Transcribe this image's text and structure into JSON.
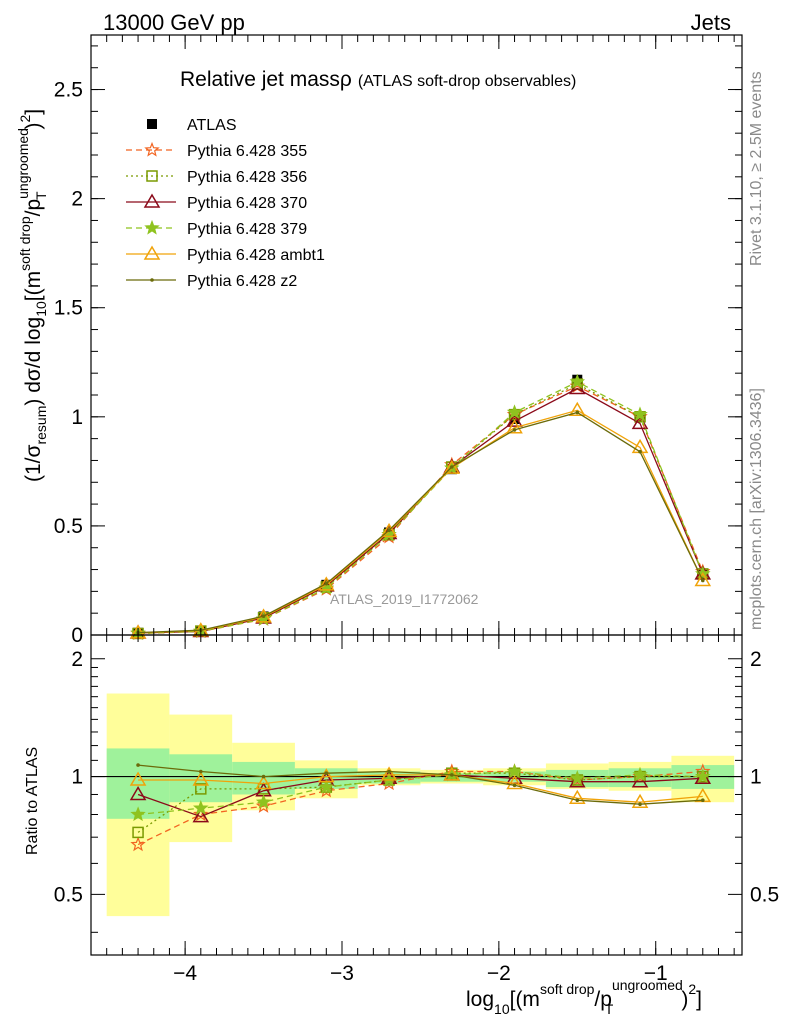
{
  "header": {
    "left": "13000 GeV pp",
    "right": "Jets"
  },
  "side_text": {
    "top": "Rivet 3.1.10, ≥ 2.5M events",
    "bottom": "mcplots.cern.ch [arXiv:1306.3436]"
  },
  "chart_data": [
    {
      "type": "line",
      "title": "Relative jet massρ",
      "subtitle": "(ATLAS soft-drop observables)",
      "watermark": "ATLAS_2019_I1772062",
      "ylabel": "(1/σresum) dσ/d log10[(m soft drop/pT ungroomed)2]",
      "ylabel_parts": {
        "a": "(1/σ",
        "a_sub": "resum",
        "b": ") dσ/d log",
        "b_sub": "10",
        "c": "[(m",
        "c_sup": "soft drop",
        "d": "/p",
        "d_sub": "T",
        "d_sup": "ungroomed",
        "e": ")",
        "e_sup": "2",
        "f": "]"
      },
      "xlim": [
        -4.6,
        -0.45
      ],
      "ylim": [
        0,
        2.75
      ],
      "y_ticks": [
        "0",
        "0.5",
        "1",
        "1.5",
        "2",
        "2.5"
      ],
      "x": [
        -4.3,
        -3.9,
        -3.5,
        -3.1,
        -2.7,
        -2.3,
        -1.9,
        -1.5,
        -1.1,
        -0.7
      ],
      "series": [
        {
          "name": "ATLAS",
          "color": "#000000",
          "style": "data",
          "marker": "square",
          "values": [
            0.01,
            0.02,
            0.085,
            0.23,
            0.47,
            0.76,
            0.99,
            1.17,
            1.0,
            0.28
          ]
        },
        {
          "name": "Pythia 6.428 355",
          "color": "#f26522",
          "style": "dashed",
          "marker": "star-open",
          "values": [
            0.007,
            0.016,
            0.072,
            0.21,
            0.45,
            0.78,
            1.01,
            1.14,
            1.0,
            0.29
          ]
        },
        {
          "name": "Pythia 6.428 356",
          "color": "#7a9a01",
          "style": "dotted",
          "marker": "square-open",
          "values": [
            0.007,
            0.018,
            0.079,
            0.22,
            0.46,
            0.77,
            1.01,
            1.15,
            1.0,
            0.28
          ]
        },
        {
          "name": "Pythia 6.428 370",
          "color": "#8b0a1a",
          "style": "solid",
          "marker": "triangle-open",
          "values": [
            0.009,
            0.016,
            0.078,
            0.225,
            0.465,
            0.77,
            0.98,
            1.13,
            0.97,
            0.28
          ]
        },
        {
          "name": "Pythia 6.428 379",
          "color": "#8fc31f",
          "style": "dashed",
          "marker": "star",
          "values": [
            0.008,
            0.017,
            0.073,
            0.215,
            0.46,
            0.765,
            1.02,
            1.16,
            1.01,
            0.28
          ]
        },
        {
          "name": "Pythia 6.428 ambt1",
          "color": "#f0a30a",
          "style": "solid",
          "marker": "triangle-open",
          "values": [
            0.01,
            0.02,
            0.083,
            0.23,
            0.475,
            0.765,
            0.95,
            1.03,
            0.86,
            0.25
          ]
        },
        {
          "name": "Pythia 6.428 z2",
          "color": "#6b6b0a",
          "style": "solid",
          "marker": "dot",
          "values": [
            0.011,
            0.022,
            0.086,
            0.235,
            0.48,
            0.77,
            0.94,
            1.02,
            0.84,
            0.25
          ]
        }
      ]
    },
    {
      "type": "line",
      "ylabel": "Ratio to ATLAS",
      "xlabel": "log10[(m soft drop/pT ungroomed)2]",
      "xlabel_parts": {
        "a": "log",
        "a_sub": "10",
        "b": "[(m",
        "b_sup": "soft drop",
        "c": "/p",
        "c_sub": "T",
        "c_sup": "ungroomed",
        "d": ")",
        "d_sup": "2",
        "e": "]"
      },
      "xlim": [
        -4.6,
        -0.45
      ],
      "ylim": [
        0.35,
        2.3
      ],
      "x_ticks": [
        "−4",
        "−3",
        "−2",
        "−1"
      ],
      "y_ticks": [
        "0.5",
        "1",
        "2"
      ],
      "bin_edges": [
        -4.5,
        -4.1,
        -3.7,
        -3.3,
        -2.9,
        -2.5,
        -2.1,
        -1.7,
        -1.3,
        -0.9,
        -0.5
      ],
      "band_inner": [
        [
          0.78,
          1.18
        ],
        [
          0.86,
          1.14
        ],
        [
          0.9,
          1.09
        ],
        [
          0.93,
          1.05
        ],
        [
          0.96,
          1.03
        ],
        [
          0.97,
          1.02
        ],
        [
          0.97,
          1.03
        ],
        [
          0.94,
          1.04
        ],
        [
          0.94,
          1.05
        ],
        [
          0.93,
          1.07
        ]
      ],
      "band_outer": [
        [
          0.44,
          1.63
        ],
        [
          0.68,
          1.44
        ],
        [
          0.82,
          1.22
        ],
        [
          0.88,
          1.1
        ],
        [
          0.95,
          1.05
        ],
        [
          0.96,
          1.04
        ],
        [
          0.95,
          1.05
        ],
        [
          0.93,
          1.08
        ],
        [
          0.92,
          1.09
        ],
        [
          0.86,
          1.13
        ]
      ],
      "x": [
        -4.3,
        -3.9,
        -3.5,
        -3.1,
        -2.7,
        -2.3,
        -1.9,
        -1.5,
        -1.1,
        -0.7
      ],
      "series": [
        {
          "name": "Pythia 6.428 355",
          "values": [
            0.67,
            0.8,
            0.84,
            0.92,
            0.96,
            1.03,
            1.03,
            0.98,
            1.0,
            1.03
          ]
        },
        {
          "name": "Pythia 6.428 356",
          "values": [
            0.72,
            0.93,
            0.93,
            0.94,
            0.98,
            1.02,
            1.02,
            0.98,
            1.0,
            1.0
          ]
        },
        {
          "name": "Pythia 6.428 370",
          "values": [
            0.9,
            0.79,
            0.92,
            0.98,
            0.99,
            1.01,
            0.99,
            0.97,
            0.97,
            0.99
          ]
        },
        {
          "name": "Pythia 6.428 379",
          "values": [
            0.8,
            0.83,
            0.86,
            0.94,
            0.98,
            1.01,
            1.03,
            0.99,
            1.01,
            1.0
          ]
        },
        {
          "name": "Pythia 6.428 ambt1",
          "values": [
            0.98,
            0.98,
            0.96,
            1.0,
            1.01,
            1.01,
            0.96,
            0.88,
            0.86,
            0.89
          ]
        },
        {
          "name": "Pythia 6.428 z2",
          "values": [
            1.07,
            1.03,
            1.0,
            1.02,
            1.03,
            1.01,
            0.95,
            0.87,
            0.85,
            0.87
          ]
        }
      ]
    }
  ]
}
